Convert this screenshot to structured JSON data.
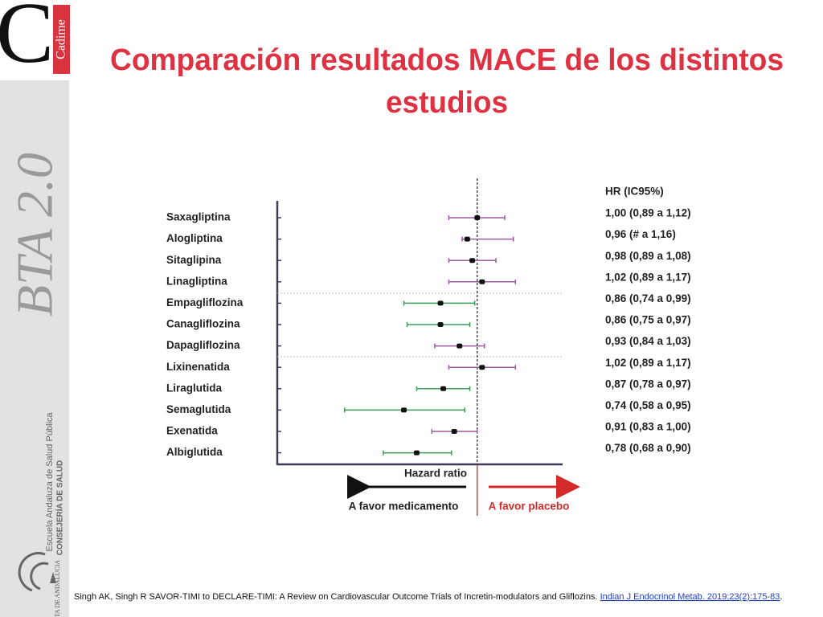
{
  "slide": {
    "logo_letter": "C",
    "logo_name": "Cadime",
    "brand": "BTA 2.0",
    "school": "Escuela Andaluza de Salud Pública",
    "ministry": "CONSEJERÍA DE SALUD",
    "government": "JUNTA DE ANDALUCIA",
    "citation": "Singh AK, Singh R SAVOR-TIMI to DECLARE-TIMI: A Review on Cardiovascular Outcome Trials of Incretin-modulators and Gliflozins.",
    "citation_link": "Indian J Endocrinol Metab. 2019;23(2):175-83",
    "citation_end": "."
  },
  "chart_data": {
    "type": "forest",
    "title": [
      "Comparación resultados MACE de los distintos",
      "estudios"
    ],
    "x_label": "Hazard ratio",
    "left_label": "A favor medicamento",
    "right_label": "A favor placebo",
    "labels_header": "HR (IC95%)",
    "categories": [
      "Saxagliptina",
      "Alogliptina",
      "Sitaglipina",
      "Linagliptina",
      "Empagliflozina",
      "Canagliflozina",
      "Dapagliflozina",
      "Lixinenatida",
      "Liraglutida",
      "Semaglutida",
      "Exenatida",
      "Albiglutida"
    ],
    "values": [
      1.0,
      0.96,
      0.98,
      1.02,
      0.86,
      0.86,
      0.93,
      1.02,
      0.87,
      0.74,
      0.91,
      0.78
    ],
    "low": [
      0.89,
      0.94,
      0.89,
      0.89,
      0.74,
      0.75,
      0.84,
      0.89,
      0.78,
      0.58,
      0.83,
      0.68
    ],
    "high": [
      1.12,
      1.16,
      1.08,
      1.17,
      0.99,
      0.97,
      1.03,
      1.17,
      0.97,
      0.95,
      1.0,
      0.9
    ],
    "value_labels": [
      "1,00 (0,89 a 1,12)",
      "0,96 (# a 1,16)",
      "0,98 (0,89 a 1,08)",
      "1,02 (0,89 a 1,17)",
      "0,86 (0,74 a 0,99)",
      "0,86 (0,75 a 0,97)",
      "0,93 (0,84 a 1,03)",
      "1,02 (0,89 a 1,17)",
      "0,87 (0,78 a 0,97)",
      "0,74 (0,58 a 0,95)",
      "0,91 (0,83 a 1,00)",
      "0,78 (0,68 a 0,90)"
    ],
    "colors": [
      "#9b5a9e",
      "#9b5a9e",
      "#9b5a9e",
      "#9b5a9e",
      "#3f9a5a",
      "#3f9a5a",
      "#9b5a9e",
      "#9b5a9e",
      "#3f9a5a",
      "#3f9a5a",
      "#9b5a9e",
      "#3f9a5a"
    ],
    "reference": 1,
    "xlim": [
      0.44,
      1.42
    ],
    "log_scale": true
  }
}
